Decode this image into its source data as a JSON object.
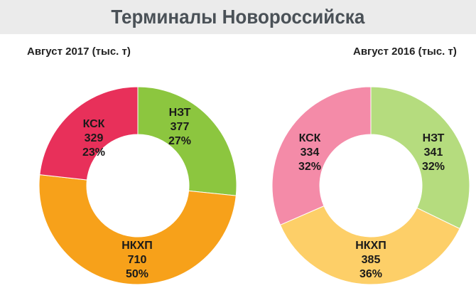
{
  "page": {
    "title": "Терминалы Новороссийска"
  },
  "chart_data": [
    {
      "type": "pie",
      "title": "Август 2017 (тыс. т)",
      "donut": true,
      "slices": [
        {
          "label": "НЗТ",
          "value": 377,
          "pct": "27%",
          "color": "#8cc63f"
        },
        {
          "label": "НКХП",
          "value": 710,
          "pct": "50%",
          "color": "#f7a11a"
        },
        {
          "label": "КСК",
          "value": 329,
          "pct": "23%",
          "color": "#e8305a"
        }
      ]
    },
    {
      "type": "pie",
      "title": "Август 2016 (тыс. т)",
      "donut": true,
      "slices": [
        {
          "label": "НЗТ",
          "value": 341,
          "pct": "32%",
          "color": "#b5dc7e"
        },
        {
          "label": "НКХП",
          "value": 385,
          "pct": "36%",
          "color": "#fdcf68"
        },
        {
          "label": "КСК",
          "value": 334,
          "pct": "32%",
          "color": "#f48ba8"
        }
      ]
    }
  ]
}
